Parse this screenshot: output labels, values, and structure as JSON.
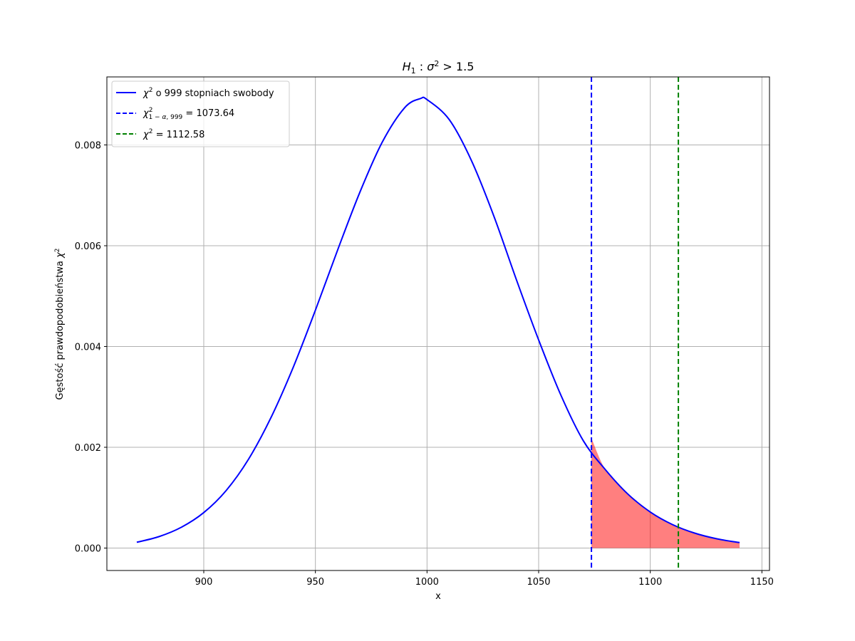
{
  "chart_data": {
    "type": "line",
    "title": "H₁ : σ² > 1.5",
    "xlabel": "x",
    "ylabel": "Gęstość prawdopodobieństwa χ²",
    "xlim": [
      856.6,
      1153.4
    ],
    "ylim": [
      -0.000445,
      0.00935
    ],
    "x_ticks": [
      900,
      950,
      1000,
      1050,
      1100,
      1150
    ],
    "y_ticks": [
      0.0,
      0.002,
      0.004,
      0.006,
      0.008
    ],
    "x_tick_labels": [
      "900",
      "950",
      "1000",
      "1050",
      "1100",
      "1150"
    ],
    "y_tick_labels": [
      "0.000",
      "0.002",
      "0.004",
      "0.006",
      "0.008"
    ],
    "grid": true,
    "legend_position": "top-left",
    "series": [
      {
        "name": "χ² o 999 stopniach swobody",
        "color": "#0000ff",
        "style": "solid",
        "x": [
          870,
          880,
          890,
          900,
          910,
          920,
          930,
          940,
          950,
          960,
          970,
          980,
          990,
          997,
          1000,
          1010,
          1020,
          1030,
          1040,
          1050,
          1060,
          1070,
          1073.64,
          1080,
          1090,
          1100,
          1110,
          1112.58,
          1120,
          1130,
          1140
        ],
        "y": [
          0.000115,
          0.000228,
          0.000414,
          0.000704,
          0.00114,
          0.00176,
          0.00258,
          0.00358,
          0.00472,
          0.00592,
          0.00707,
          0.00806,
          0.00874,
          0.00892,
          0.0089,
          0.0085,
          0.00768,
          0.00658,
          0.00533,
          0.00413,
          0.00303,
          0.00213,
          0.00218,
          0.00155,
          0.00107,
          0.000715,
          0.000465,
          0.000413,
          0.000295,
          0.000182,
          0.000109
        ]
      },
      {
        "name": "χ²₁₋α, ₉₉₉ = 1073.64",
        "color": "#0000ff",
        "style": "dashed",
        "vline_x": 1073.64
      },
      {
        "name": "χ² = 1112.58",
        "color": "#008000",
        "style": "dashed",
        "vline_x": 1112.58
      }
    ],
    "shaded_region": {
      "x_from": 1073.64,
      "x_to": 1140,
      "color": "#ff0000",
      "alpha": 0.5
    }
  }
}
